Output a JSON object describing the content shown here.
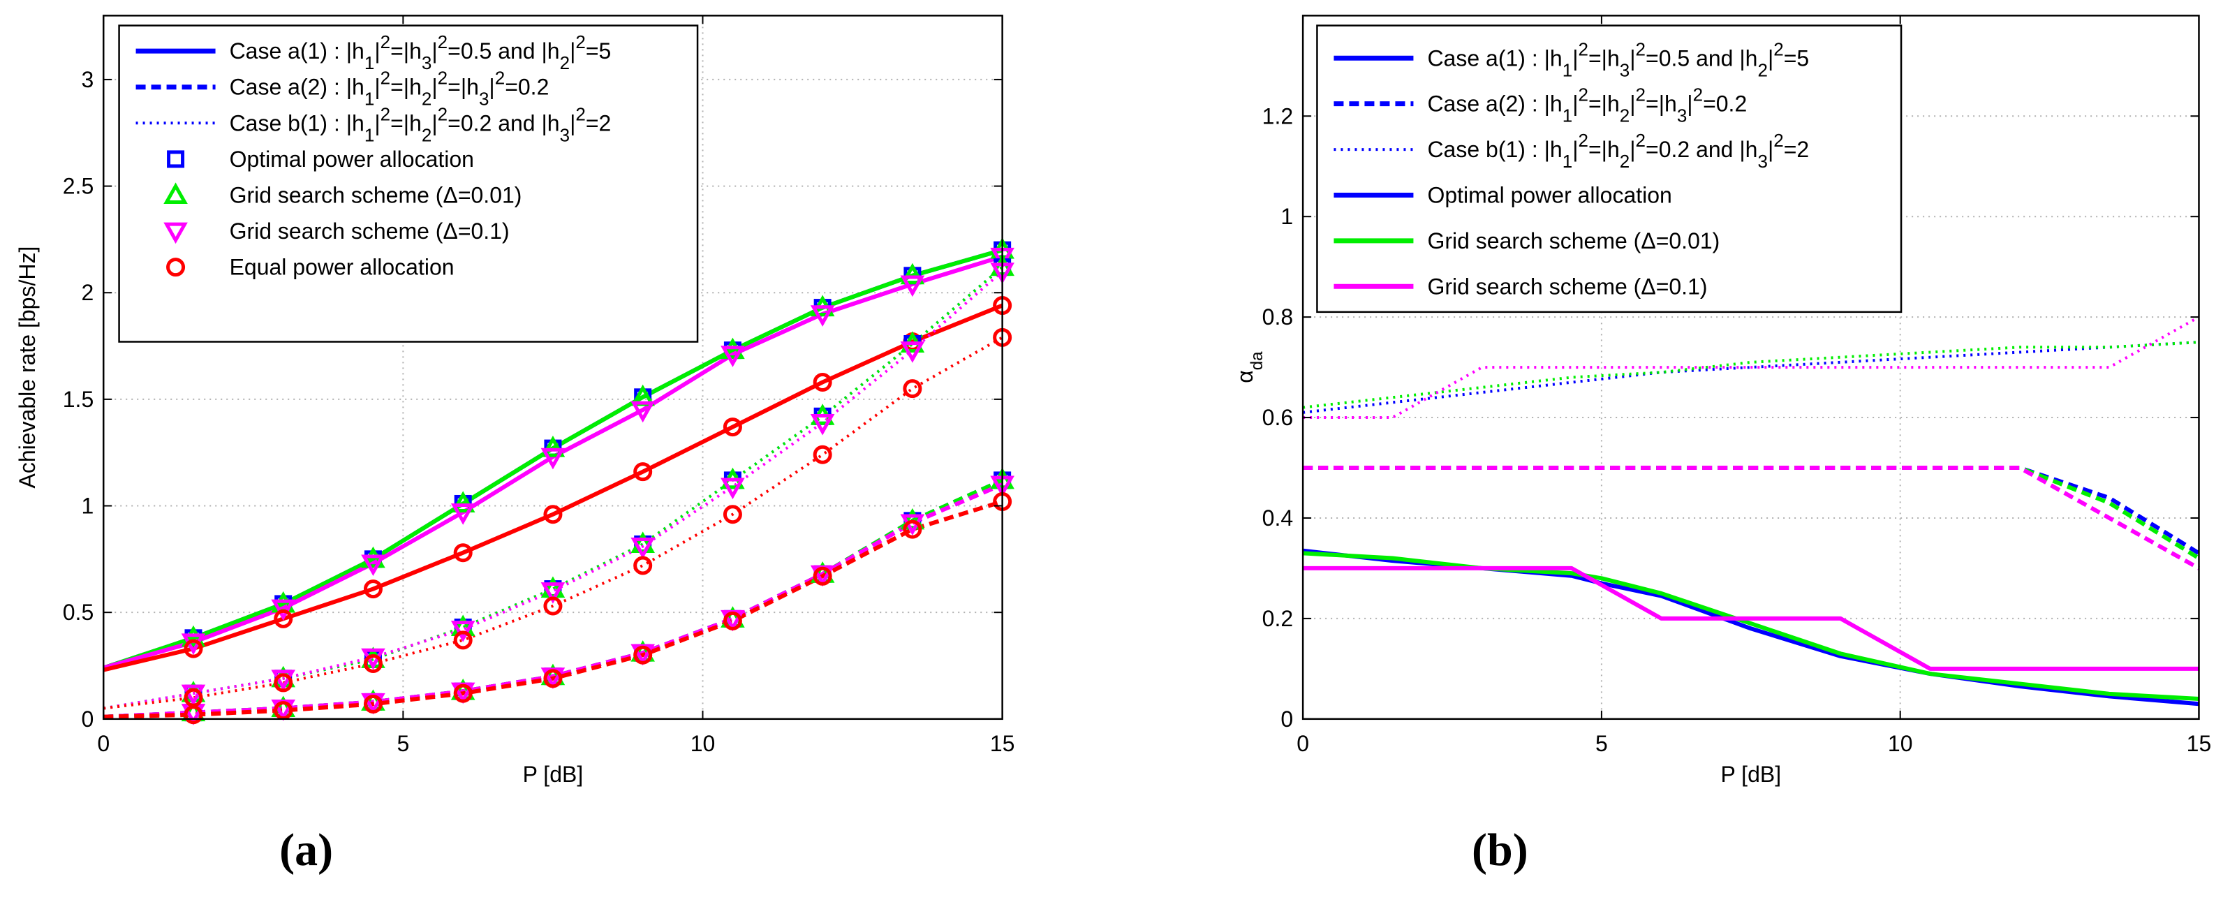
{
  "chart_data": [
    {
      "type": "line",
      "panel": "a",
      "panel_label": "(a)",
      "xlabel": "P [dB]",
      "ylabel": "Achievable rate [bps/Hz]",
      "xlim": [
        0,
        15
      ],
      "ylim": [
        0,
        3.3
      ],
      "xticks": [
        0,
        5,
        10,
        15
      ],
      "yticks": [
        0,
        0.5,
        1,
        1.5,
        2,
        2.5,
        3
      ],
      "grid": true,
      "legend_position": "top-left",
      "legend": [
        {
          "label": "Case a(1) : |h1|2=|h3|2=0.5 and |h2|2=5",
          "style": "solid",
          "color": "#0000ff"
        },
        {
          "label": "Case a(2) : |h1|2=|h2|2=|h3|2=0.2",
          "style": "dashed",
          "color": "#0000ff"
        },
        {
          "label": "Case b(1) : |h1|2=|h2|2=0.2 and |h3|2=2",
          "style": "dotted",
          "color": "#0000ff"
        },
        {
          "label": "Optimal power allocation",
          "marker": "square",
          "color": "#0000ff"
        },
        {
          "label": "Grid search scheme (Δ=0.01)",
          "marker": "triangle-up",
          "color": "#00ee00"
        },
        {
          "label": "Grid search scheme (Δ=0.1)",
          "marker": "triangle-down",
          "color": "#ff00ff"
        },
        {
          "label": "Equal power allocation",
          "marker": "circle",
          "color": "#ff0000"
        }
      ],
      "x": [
        0,
        1.5,
        3,
        4.5,
        6,
        7.5,
        9,
        10.5,
        12,
        13.5,
        15
      ],
      "series": [
        {
          "name": "Case a(1) Optimal power allocation",
          "style": "solid",
          "color": "#0000ff",
          "marker": "square",
          "values": [
            0.24,
            0.38,
            0.54,
            0.75,
            1.01,
            1.27,
            1.51,
            1.73,
            1.93,
            2.08,
            2.2
          ]
        },
        {
          "name": "Case a(1) Grid search scheme (Δ=0.01)",
          "style": "solid",
          "color": "#00ee00",
          "marker": "triangle-up",
          "values": [
            0.24,
            0.38,
            0.54,
            0.75,
            1.01,
            1.27,
            1.51,
            1.73,
            1.93,
            2.08,
            2.2
          ]
        },
        {
          "name": "Case a(1) Grid search scheme (Δ=0.1)",
          "style": "solid",
          "color": "#ff00ff",
          "marker": "triangle-down",
          "values": [
            0.24,
            0.36,
            0.52,
            0.73,
            0.97,
            1.23,
            1.45,
            1.71,
            1.9,
            2.04,
            2.17
          ]
        },
        {
          "name": "Case a(1) Equal power allocation",
          "style": "solid",
          "color": "#ff0000",
          "marker": "circle",
          "values": [
            0.23,
            0.33,
            0.47,
            0.61,
            0.78,
            0.96,
            1.16,
            1.37,
            1.58,
            1.77,
            1.94
          ]
        },
        {
          "name": "Case a(2) Optimal power allocation",
          "style": "dashed",
          "color": "#0000ff",
          "marker": "square",
          "values": [
            0.01,
            0.03,
            0.05,
            0.08,
            0.13,
            0.2,
            0.31,
            0.47,
            0.68,
            0.93,
            1.12
          ]
        },
        {
          "name": "Case a(2) Grid search scheme (Δ=0.01)",
          "style": "dashed",
          "color": "#00ee00",
          "marker": "triangle-up",
          "values": [
            0.01,
            0.03,
            0.05,
            0.08,
            0.13,
            0.2,
            0.31,
            0.47,
            0.68,
            0.93,
            1.12
          ]
        },
        {
          "name": "Case a(2) Grid search scheme (Δ=0.1)",
          "style": "dashed",
          "color": "#ff00ff",
          "marker": "triangle-down",
          "values": [
            0.01,
            0.03,
            0.05,
            0.08,
            0.13,
            0.2,
            0.31,
            0.47,
            0.68,
            0.92,
            1.1
          ]
        },
        {
          "name": "Case a(2) Equal power allocation",
          "style": "dashed",
          "color": "#ff0000",
          "marker": "circle",
          "values": [
            0.01,
            0.02,
            0.04,
            0.07,
            0.12,
            0.19,
            0.3,
            0.46,
            0.67,
            0.89,
            1.02
          ]
        },
        {
          "name": "Case b(1) Optimal power allocation",
          "style": "dotted",
          "color": "#0000ff",
          "marker": "square",
          "values": [
            0.05,
            0.12,
            0.19,
            0.28,
            0.43,
            0.61,
            0.82,
            1.12,
            1.42,
            1.76,
            2.12
          ]
        },
        {
          "name": "Case b(1) Grid search scheme (Δ=0.01)",
          "style": "dotted",
          "color": "#00ee00",
          "marker": "triangle-up",
          "values": [
            0.05,
            0.12,
            0.19,
            0.28,
            0.43,
            0.61,
            0.82,
            1.12,
            1.42,
            1.76,
            2.12
          ]
        },
        {
          "name": "Case b(1) Grid search scheme (Δ=0.1)",
          "style": "dotted",
          "color": "#ff00ff",
          "marker": "triangle-down",
          "values": [
            0.05,
            0.12,
            0.19,
            0.29,
            0.42,
            0.6,
            0.81,
            1.09,
            1.39,
            1.73,
            2.1
          ]
        },
        {
          "name": "Case b(1) Equal power allocation",
          "style": "dotted",
          "color": "#ff0000",
          "marker": "circle",
          "values": [
            0.05,
            0.1,
            0.17,
            0.26,
            0.37,
            0.53,
            0.72,
            0.96,
            1.24,
            1.55,
            1.79
          ]
        }
      ]
    },
    {
      "type": "line",
      "panel": "b",
      "panel_label": "(b)",
      "xlabel": "P [dB]",
      "ylabel": "α_da",
      "xlim": [
        0,
        15
      ],
      "ylim": [
        0,
        1.4
      ],
      "xticks": [
        0,
        5,
        10,
        15
      ],
      "yticks": [
        0,
        0.2,
        0.4,
        0.6,
        0.8,
        1,
        1.2
      ],
      "grid": true,
      "legend_position": "top-left",
      "legend": [
        {
          "label": "Case a(1) : |h1|2=|h3|2=0.5 and |h2|2=5",
          "style": "solid",
          "color": "#0000ff"
        },
        {
          "label": "Case a(2) : |h1|2=|h2|2=|h3|2=0.2",
          "style": "dashed",
          "color": "#0000ff"
        },
        {
          "label": "Case b(1) : |h1|2=|h2|2=0.2 and |h3|2=2",
          "style": "dotted",
          "color": "#0000ff"
        },
        {
          "label": "Optimal power allocation",
          "style": "solid",
          "color": "#0000ff"
        },
        {
          "label": "Grid search scheme (Δ=0.01)",
          "style": "solid",
          "color": "#00ee00"
        },
        {
          "label": "Grid search scheme (Δ=0.1)",
          "style": "solid",
          "color": "#ff00ff"
        }
      ],
      "series": [
        {
          "name": "Case a(1) Optimal power allocation",
          "style": "solid",
          "color": "#0000ff",
          "x": [
            0,
            1.5,
            3,
            4.5,
            5,
            6,
            7.5,
            9,
            10.5,
            12,
            13.5,
            15
          ],
          "y": [
            0.335,
            0.315,
            0.3,
            0.285,
            0.27,
            0.245,
            0.18,
            0.125,
            0.09,
            0.065,
            0.045,
            0.03
          ]
        },
        {
          "name": "Case a(1) Grid search scheme (Δ=0.01)",
          "style": "solid",
          "color": "#00ee00",
          "x": [
            0,
            1.5,
            3,
            4.5,
            5,
            6,
            7.5,
            9,
            10.5,
            12,
            13.5,
            15
          ],
          "y": [
            0.33,
            0.32,
            0.3,
            0.29,
            0.28,
            0.25,
            0.19,
            0.13,
            0.09,
            0.07,
            0.05,
            0.04
          ]
        },
        {
          "name": "Case a(1) Grid search scheme (Δ=0.1)",
          "style": "solid",
          "color": "#ff00ff",
          "x": [
            0,
            4.5,
            6,
            9,
            10.5,
            15
          ],
          "y": [
            0.3,
            0.3,
            0.2,
            0.2,
            0.1,
            0.1
          ]
        },
        {
          "name": "Case a(2) Optimal power allocation",
          "style": "dashed",
          "color": "#0000ff",
          "x": [
            0,
            12,
            13.5,
            15
          ],
          "y": [
            0.5,
            0.5,
            0.44,
            0.33
          ]
        },
        {
          "name": "Case a(2) Grid search scheme (Δ=0.01)",
          "style": "dashed",
          "color": "#00ee00",
          "x": [
            0,
            12,
            13.5,
            15
          ],
          "y": [
            0.5,
            0.5,
            0.43,
            0.32
          ]
        },
        {
          "name": "Case a(2) Grid search scheme (Δ=0.1)",
          "style": "dashed",
          "color": "#ff00ff",
          "x": [
            0,
            12,
            13.5,
            15
          ],
          "y": [
            0.5,
            0.5,
            0.4,
            0.3
          ]
        },
        {
          "name": "Case b(1) Optimal power allocation",
          "style": "dotted",
          "color": "#0000ff",
          "x": [
            0,
            1.5,
            3,
            4.5,
            6,
            7.5,
            9,
            10.5,
            12,
            13.5,
            15
          ],
          "y": [
            0.61,
            0.63,
            0.65,
            0.67,
            0.69,
            0.7,
            0.71,
            0.72,
            0.73,
            0.74,
            0.75
          ]
        },
        {
          "name": "Case b(1) Grid search scheme (Δ=0.01)",
          "style": "dotted",
          "color": "#00ee00",
          "x": [
            0,
            1.5,
            3,
            4.5,
            6,
            7.5,
            9,
            10.5,
            12,
            13.5,
            15
          ],
          "y": [
            0.62,
            0.64,
            0.66,
            0.68,
            0.69,
            0.71,
            0.72,
            0.73,
            0.74,
            0.74,
            0.75
          ]
        },
        {
          "name": "Case b(1) Grid search scheme (Δ=0.1)",
          "style": "dotted",
          "color": "#ff00ff",
          "x": [
            0,
            1.5,
            3,
            4.5,
            6,
            7.5,
            9,
            10.5,
            12,
            13.5,
            15
          ],
          "y": [
            0.6,
            0.6,
            0.7,
            0.7,
            0.7,
            0.7,
            0.7,
            0.7,
            0.7,
            0.7,
            0.8
          ]
        }
      ]
    }
  ]
}
